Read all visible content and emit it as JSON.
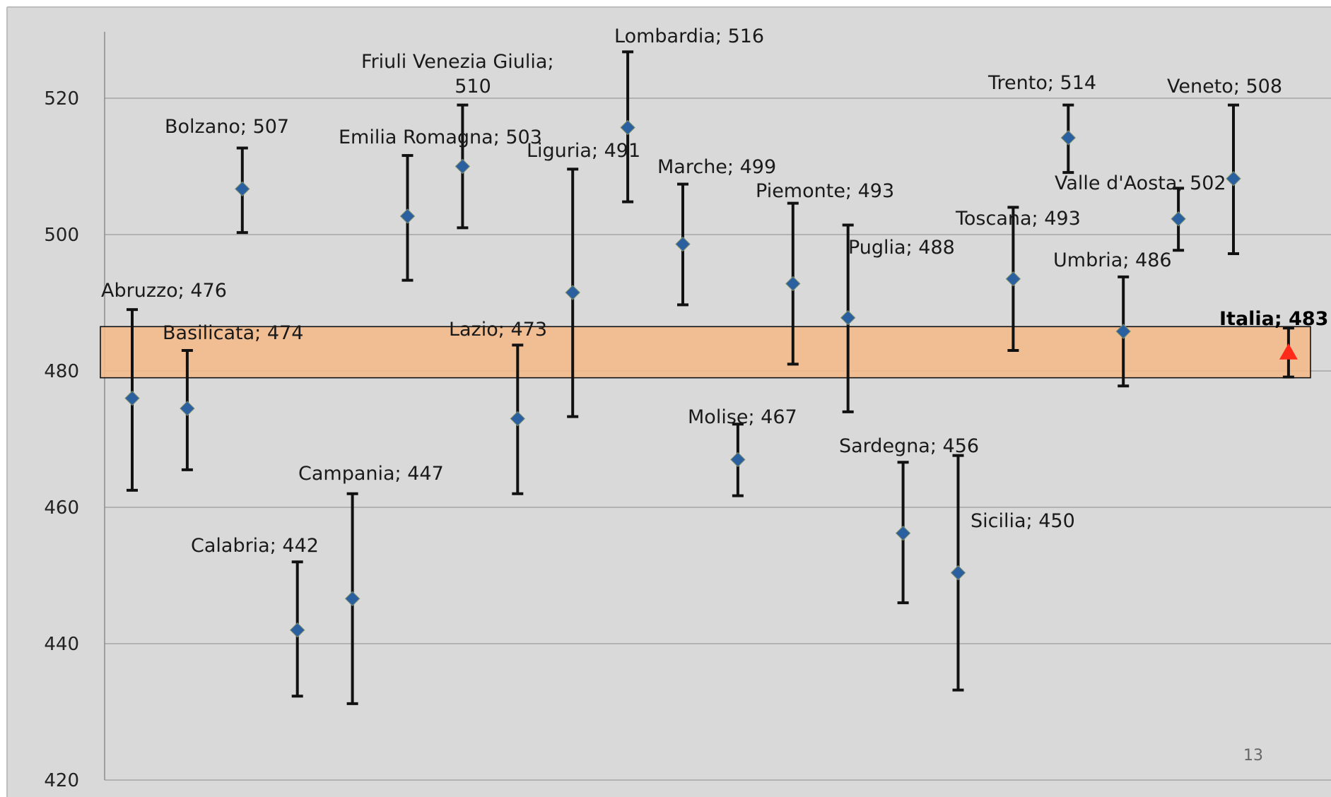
{
  "page_number": "13",
  "chart_data": {
    "type": "scatter",
    "title": "",
    "xlabel": "",
    "ylabel": "",
    "ylim": [
      420,
      530
    ],
    "yticks": [
      420,
      440,
      460,
      480,
      500,
      520
    ],
    "grid": true,
    "band": {
      "low": 479,
      "high": 486.5,
      "color": "#f4b98a"
    },
    "colors": {
      "marker": "#2a5fa0",
      "highlight": "#ff2a1a",
      "errorbar": "#111111"
    },
    "points": [
      {
        "label": "Abruzzo; 476",
        "value": 476,
        "low": 462.5,
        "high": 489,
        "bold": false
      },
      {
        "label": "Basilicata; 474",
        "value": 474.5,
        "low": 465.5,
        "high": 483,
        "bold": false
      },
      {
        "label": "Bolzano; 507",
        "value": 506.7,
        "low": 500.3,
        "high": 512.7,
        "bold": false
      },
      {
        "label": "Calabria; 442",
        "value": 442,
        "low": 432.3,
        "high": 452,
        "bold": false
      },
      {
        "label": "Campania; 447",
        "value": 446.6,
        "low": 431.2,
        "high": 462,
        "bold": false
      },
      {
        "label": "Emilia Romagna; 503",
        "value": 502.7,
        "low": 493.3,
        "high": 511.6,
        "bold": false
      },
      {
        "label": "Friuli Venezia Giulia; 510",
        "value": 510,
        "low": 501,
        "high": 519,
        "bold": false
      },
      {
        "label": "Lazio; 473",
        "value": 473,
        "low": 462,
        "high": 483.8,
        "bold": false
      },
      {
        "label": "Liguria; 491",
        "value": 491.5,
        "low": 473.3,
        "high": 509.6,
        "bold": false
      },
      {
        "label": "Lombardia; 516",
        "value": 515.7,
        "low": 504.8,
        "high": 526.8,
        "bold": false
      },
      {
        "label": "Marche; 499",
        "value": 498.6,
        "low": 489.7,
        "high": 507.4,
        "bold": false
      },
      {
        "label": "Molise; 467",
        "value": 467,
        "low": 461.7,
        "high": 472.2,
        "bold": false
      },
      {
        "label": "Piemonte; 493",
        "value": 492.8,
        "low": 481,
        "high": 504.6,
        "bold": false
      },
      {
        "label": "Puglia; 488",
        "value": 487.8,
        "low": 474,
        "high": 501.4,
        "bold": false
      },
      {
        "label": "Sardegna; 456",
        "value": 456.2,
        "low": 446,
        "high": 466.6,
        "bold": false
      },
      {
        "label": "Sicilia; 450",
        "value": 450.4,
        "low": 433.2,
        "high": 467.6,
        "bold": false
      },
      {
        "label": "Toscana; 493",
        "value": 493.5,
        "low": 483,
        "high": 504,
        "bold": false
      },
      {
        "label": "Trento; 514",
        "value": 514.2,
        "low": 509.1,
        "high": 519,
        "bold": false
      },
      {
        "label": "Umbria; 486",
        "value": 485.8,
        "low": 477.8,
        "high": 493.8,
        "bold": false
      },
      {
        "label": "Valle d'Aosta; 502",
        "value": 502.3,
        "low": 497.7,
        "high": 506.8,
        "bold": false
      },
      {
        "label": "Veneto; 508",
        "value": 508.2,
        "low": 497.2,
        "high": 519,
        "bold": false
      },
      {
        "label": "Italia; 483",
        "value": 482.7,
        "low": 479.1,
        "high": 486.3,
        "bold": true,
        "highlight": true
      }
    ]
  }
}
